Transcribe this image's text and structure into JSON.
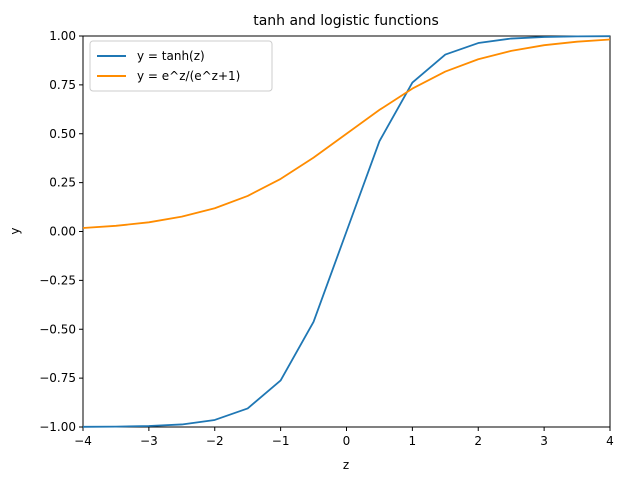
{
  "chart_data": {
    "type": "line",
    "title": "tanh and logistic functions",
    "xlabel": "z",
    "ylabel": "y",
    "xlim": [
      -4,
      4
    ],
    "ylim": [
      -1.0,
      1.0
    ],
    "x_ticks": [
      "−4",
      "−3",
      "−2",
      "−1",
      "0",
      "1",
      "2",
      "3",
      "4"
    ],
    "x_tick_values": [
      -4,
      -3,
      -2,
      -1,
      0,
      1,
      2,
      3,
      4
    ],
    "y_ticks": [
      "−1.00",
      "−0.75",
      "−0.50",
      "−0.25",
      "0.00",
      "0.25",
      "0.50",
      "0.75",
      "1.00"
    ],
    "y_tick_values": [
      -1.0,
      -0.75,
      -0.5,
      -0.25,
      0.0,
      0.25,
      0.5,
      0.75,
      1.0
    ],
    "grid": false,
    "legend_position": "top-left",
    "series": [
      {
        "name": "y = tanh(z)",
        "color": "#1f77b4",
        "x": [
          -4,
          -3.5,
          -3,
          -2.5,
          -2,
          -1.5,
          -1,
          -0.5,
          0,
          0.5,
          1,
          1.5,
          2,
          2.5,
          3,
          3.5,
          4
        ],
        "values": [
          -0.999,
          -0.998,
          -0.995,
          -0.987,
          -0.964,
          -0.905,
          -0.762,
          -0.462,
          0.0,
          0.462,
          0.762,
          0.905,
          0.964,
          0.987,
          0.995,
          0.998,
          0.999
        ]
      },
      {
        "name": "y = e^z/(e^z+1)",
        "color": "#ff8c00",
        "x": [
          -4,
          -3.5,
          -3,
          -2.5,
          -2,
          -1.5,
          -1,
          -0.5,
          0,
          0.5,
          1,
          1.5,
          2,
          2.5,
          3,
          3.5,
          4
        ],
        "values": [
          0.018,
          0.029,
          0.047,
          0.076,
          0.119,
          0.182,
          0.269,
          0.378,
          0.5,
          0.622,
          0.731,
          0.818,
          0.881,
          0.924,
          0.953,
          0.971,
          0.982
        ]
      }
    ]
  }
}
